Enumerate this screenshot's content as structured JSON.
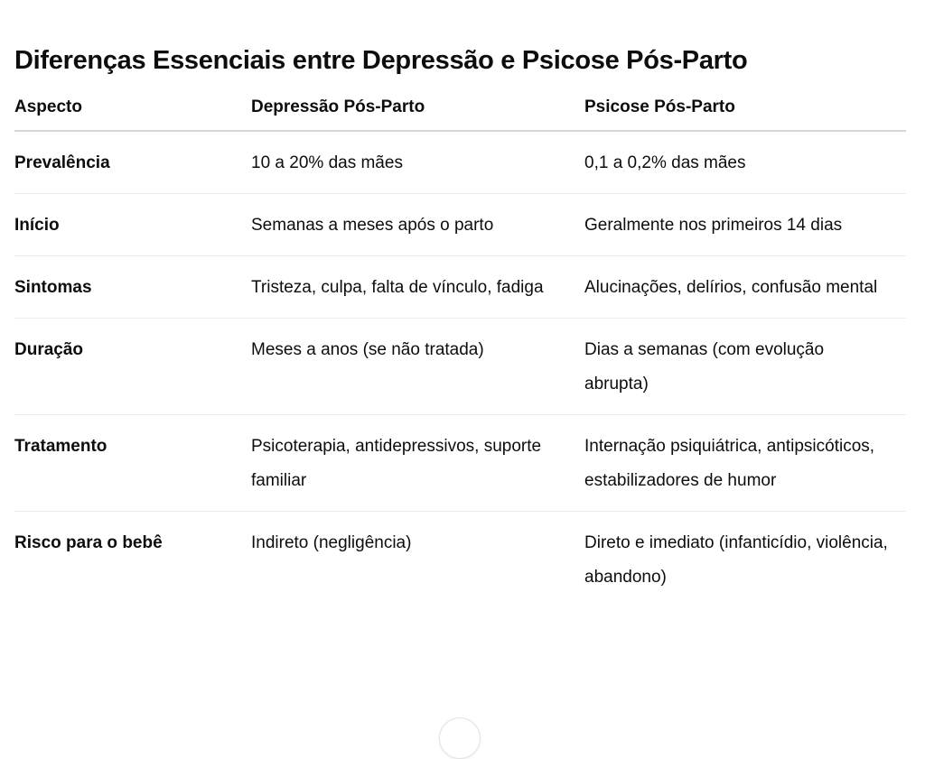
{
  "title": "Diferenças Essenciais entre Depressão e Psicose Pós-Parto",
  "table": {
    "headers": [
      "Aspecto",
      "Depressão Pós-Parto",
      "Psicose Pós-Parto"
    ],
    "rows": [
      [
        "Prevalência",
        "10 a 20% das mães",
        "0,1 a 0,2% das mães"
      ],
      [
        "Início",
        "Semanas a meses após o parto",
        "Geralmente nos primeiros 14 dias"
      ],
      [
        "Sintomas",
        "Tristeza, culpa, falta de vínculo, fadiga",
        "Alucinações, delírios, confusão mental"
      ],
      [
        "Duração",
        "Meses a anos (se não tratada)",
        "Dias a semanas (com evolução abrupta)"
      ],
      [
        "Tratamento",
        "Psicoterapia, antidepressivos, suporte familiar",
        "Internação psiquiátrica, antipsicóticos, estabilizadores de humor"
      ],
      [
        "Risco para o bebê",
        "Indireto (negligência)",
        "Direto e imediato (infanticídio, violência, abandono)"
      ]
    ]
  },
  "scroll_button": {
    "icon": "arrow-down-icon"
  }
}
